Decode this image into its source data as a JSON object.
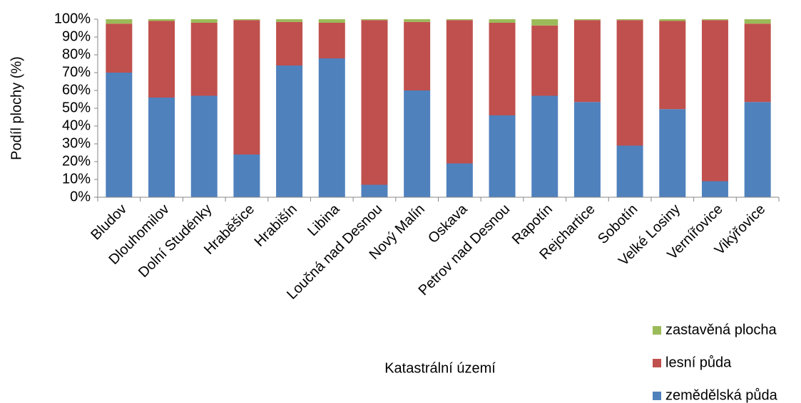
{
  "chart_data": {
    "type": "stacked_bar",
    "y_axis_label": "Podíl plochy (%)",
    "x_axis_label": "Katastrální území",
    "categories": [
      "Bludov",
      "Dlouhomilov",
      "Dolní Studénky",
      "Hraběšice",
      "Hrabišín",
      "Libina",
      "Loučná nad Desnou",
      "Nový Malín",
      "Oskava",
      "Petrov nad Desnou",
      "Rapotín",
      "Rejchartice",
      "Sobotín",
      "Velké Losiny",
      "Vernířovice",
      "Vikýřovice"
    ],
    "series": [
      {
        "name": "zemědělská půda",
        "color": "#4f81bd",
        "values": [
          70,
          56,
          57,
          24,
          74,
          78,
          7,
          60,
          19,
          46,
          57,
          53.5,
          29,
          49.5,
          9,
          53.5
        ]
      },
      {
        "name": "lesní půda",
        "color": "#c0504d",
        "values": [
          27.5,
          43,
          41,
          75.5,
          24.5,
          20,
          92.5,
          38.5,
          80.5,
          52,
          39.5,
          46,
          70.5,
          49.5,
          90.5,
          44
        ]
      },
      {
        "name": "zastavěná plocha",
        "color": "#9bbb59",
        "values": [
          2.5,
          1,
          2,
          0.5,
          1.5,
          2,
          0.5,
          1.5,
          0.5,
          2,
          3.5,
          0.5,
          0.5,
          1,
          0.5,
          2.5
        ]
      }
    ],
    "ylim": [
      0,
      100
    ],
    "yticks": [
      {
        "value": 0,
        "label": "0%"
      },
      {
        "value": 10,
        "label": "10%"
      },
      {
        "value": 20,
        "label": "20%"
      },
      {
        "value": 30,
        "label": "30%"
      },
      {
        "value": 40,
        "label": "40%"
      },
      {
        "value": 50,
        "label": "50%"
      },
      {
        "value": 60,
        "label": "60%"
      },
      {
        "value": 70,
        "label": "70%"
      },
      {
        "value": 80,
        "label": "80%"
      },
      {
        "value": 90,
        "label": "90%"
      },
      {
        "value": 100,
        "label": "100%"
      }
    ],
    "grid": false,
    "legend": "bottom-right"
  }
}
